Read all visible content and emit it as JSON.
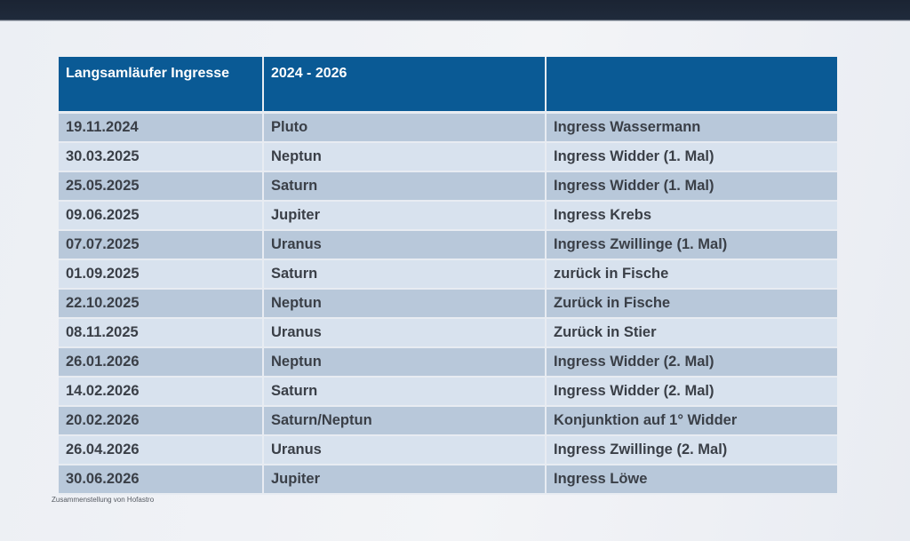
{
  "table": {
    "headers": [
      "Langsamläufer Ingresse",
      "2024 - 2026",
      ""
    ],
    "rows": [
      [
        "19.11.2024",
        "Pluto",
        "Ingress Wassermann"
      ],
      [
        "30.03.2025",
        "Neptun",
        "Ingress Widder (1. Mal)"
      ],
      [
        "25.05.2025",
        "Saturn",
        "Ingress Widder (1. Mal)"
      ],
      [
        "09.06.2025",
        "Jupiter",
        "Ingress Krebs"
      ],
      [
        "07.07.2025",
        "Uranus",
        "Ingress Zwillinge (1. Mal)"
      ],
      [
        "01.09.2025",
        "Saturn",
        "zurück in Fische"
      ],
      [
        "22.10.2025",
        "Neptun",
        "Zurück in Fische"
      ],
      [
        "08.11.2025",
        "Uranus",
        "Zurück in Stier"
      ],
      [
        "26.01.2026",
        "Neptun",
        "Ingress Widder (2. Mal)"
      ],
      [
        "14.02.2026",
        "Saturn",
        "Ingress Widder  (2. Mal)"
      ],
      [
        "20.02.2026",
        "Saturn/Neptun",
        "Konjunktion auf 1° Widder"
      ],
      [
        "26.04.2026",
        "Uranus",
        "Ingress Zwillinge (2. Mal)"
      ],
      [
        "30.06.2026",
        "Jupiter",
        "Ingress Löwe"
      ]
    ]
  },
  "footer": {
    "note": "Zusammenstellung von Hofastro"
  },
  "colors": {
    "header": "#0a5a95",
    "row_dark": "#b8c8da",
    "row_light": "#d8e2ee"
  }
}
